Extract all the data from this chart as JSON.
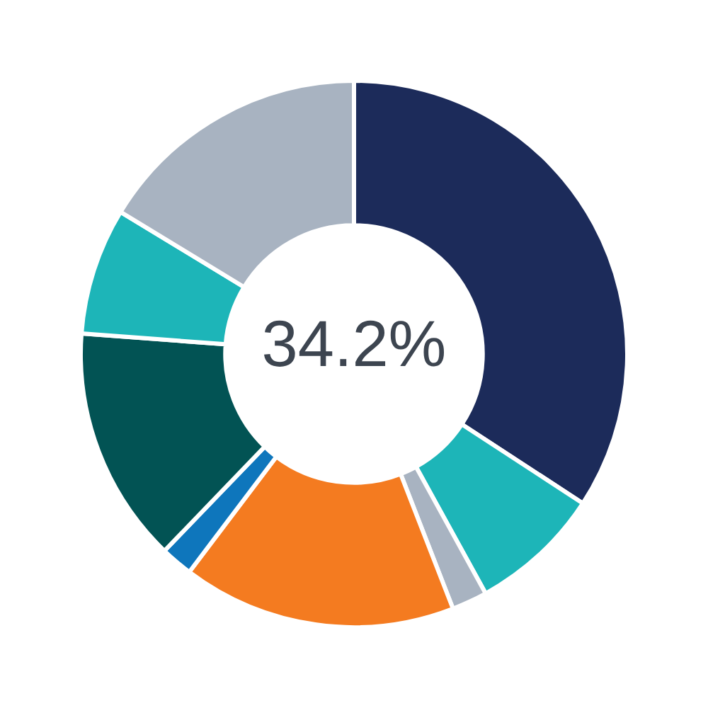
{
  "chart_data": {
    "type": "donut",
    "categories": [
      null,
      null,
      null,
      null,
      null,
      null,
      null,
      null
    ],
    "values": [
      34.2,
      7.8,
      2.1,
      16.2,
      1.9,
      14.0,
      7.5,
      16.3
    ],
    "colors": [
      "#1c2b5a",
      "#1db5b8",
      "#a8b3c1",
      "#f47b20",
      "#0e76bc",
      "#025354",
      "#1db5b8",
      "#a8b3c1"
    ],
    "annotations": [
      "34.2%"
    ]
  }
}
